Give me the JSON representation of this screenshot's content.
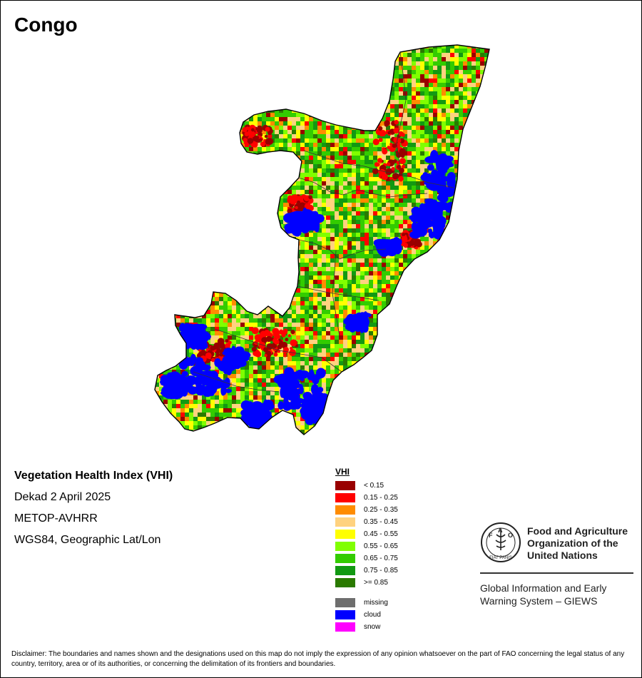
{
  "title": "Congo",
  "info": {
    "index_name": "Vegetation Health Index (VHI)",
    "period": "Dekad 2 April 2025",
    "sensor": "METOP-AVHRR",
    "projection": "WGS84, Geographic Lat/Lon"
  },
  "legend": {
    "title": "VHI",
    "classes": [
      {
        "label": "< 0.15",
        "color": "#990000"
      },
      {
        "label": "0.15 - 0.25",
        "color": "#ff0000"
      },
      {
        "label": "0.25 - 0.35",
        "color": "#ff8c00"
      },
      {
        "label": "0.35 - 0.45",
        "color": "#ffd27f"
      },
      {
        "label": "0.45 - 0.55",
        "color": "#ffff00"
      },
      {
        "label": "0.55 - 0.65",
        "color": "#80ff00"
      },
      {
        "label": "0.65 - 0.75",
        "color": "#33cc00"
      },
      {
        "label": ">= 0.85",
        "color": "#2a7a00"
      }
    ],
    "classes_full": [
      {
        "label": "< 0.15",
        "color": "#990000"
      },
      {
        "label": "0.15 - 0.25",
        "color": "#ff0000"
      },
      {
        "label": "0.25 - 0.35",
        "color": "#ff8c00"
      },
      {
        "label": "0.35 - 0.45",
        "color": "#ffd27f"
      },
      {
        "label": "0.45 - 0.55",
        "color": "#ffff00"
      },
      {
        "label": "0.55 - 0.65",
        "color": "#80ff00"
      },
      {
        "label": "0.65 - 0.75",
        "color": "#33cc00"
      },
      {
        "label": "0.75 - 0.85",
        "color": "#129912"
      },
      {
        "label": ">= 0.85",
        "color": "#2a7a00"
      }
    ],
    "special": [
      {
        "label": "missing",
        "color": "#6e6e6e"
      },
      {
        "label": "cloud",
        "color": "#0000ff"
      },
      {
        "label": "snow",
        "color": "#ff00ff"
      }
    ]
  },
  "fao": {
    "logo_letters": "FAO",
    "logo_motto": "FIAT PANIS",
    "name_line1": "Food and Agriculture",
    "name_line2": "Organization of the",
    "name_line3": "United Nations",
    "giews_line1": "Global Information and Early",
    "giews_line2": "Warning System – GIEWS"
  },
  "disclaimer": "Disclaimer: The boundaries and names shown and the designations used on this map do not imply the expression of any opinion whatsoever on the part of FAO concerning the legal status of any country, territory, area or of its authorities, or concerning the delimitation of its frontiers and boundaries."
}
